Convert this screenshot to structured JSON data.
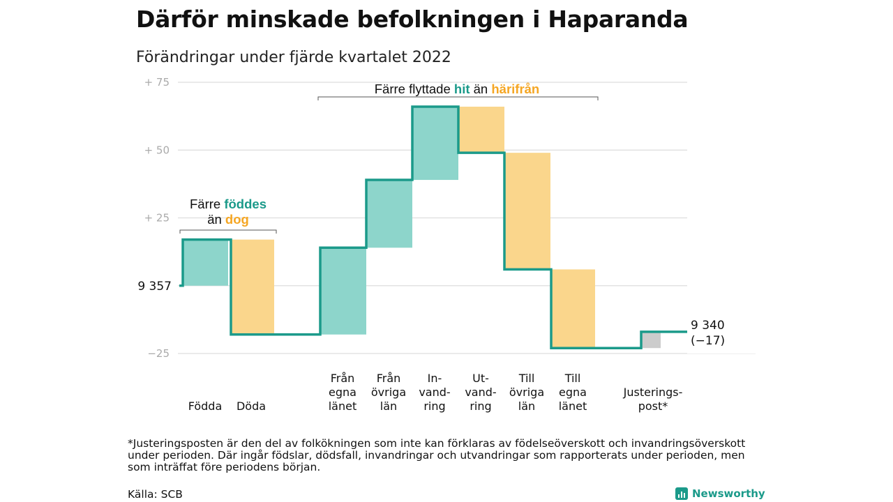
{
  "title": "Därför minskade befolkningen i Haparanda",
  "subtitle": "Förändringar under fjärde kvartalet 2022",
  "colors": {
    "increase": "#8dd5cb",
    "decrease": "#fad68c",
    "adjustment": "#cccccc",
    "line": "#1b9a8a",
    "highlight_green": "#1b9a8a",
    "highlight_orange": "#f5a623",
    "grid": "#dddddd",
    "axis_text": "#aaaaaa"
  },
  "chart_data": {
    "type": "waterfall",
    "baseline": 9357,
    "start_label": "9 357",
    "end_label_value": "9 340",
    "end_label_change": "(−17)",
    "ylim": [
      -25,
      75
    ],
    "yticks": [
      {
        "value": 75,
        "label": "+ 75"
      },
      {
        "value": 50,
        "label": "+ 50"
      },
      {
        "value": 25,
        "label": "+ 25"
      },
      {
        "value": 0,
        "label": ""
      },
      {
        "value": -25,
        "label": "−25"
      }
    ],
    "steps": [
      {
        "category": "Födda",
        "label_lines": [
          "Födda"
        ],
        "delta": 17,
        "kind": "increase"
      },
      {
        "category": "Döda",
        "label_lines": [
          "Döda"
        ],
        "delta": -35,
        "kind": "decrease"
      },
      {
        "category": "Från egna länet",
        "label_lines": [
          "Från",
          "egna",
          "länet"
        ],
        "delta": 32,
        "kind": "increase"
      },
      {
        "category": "Från övriga län",
        "label_lines": [
          "Från",
          "övriga",
          "län"
        ],
        "delta": 25,
        "kind": "increase"
      },
      {
        "category": "Invandring",
        "label_lines": [
          "In-",
          "vand-",
          "ring"
        ],
        "delta": 27,
        "kind": "increase"
      },
      {
        "category": "Utvandring",
        "label_lines": [
          "Ut-",
          "vand-",
          "ring"
        ],
        "delta": -17,
        "kind": "decrease"
      },
      {
        "category": "Till övriga län",
        "label_lines": [
          "Till",
          "övriga",
          "län"
        ],
        "delta": -43,
        "kind": "decrease"
      },
      {
        "category": "Till egna länet",
        "label_lines": [
          "Till",
          "egna",
          "länet"
        ],
        "delta": -29,
        "kind": "decrease"
      },
      {
        "category": "Justeringspost*",
        "label_lines": [
          "Justerings-",
          "post*"
        ],
        "delta": 6,
        "kind": "adjustment"
      }
    ],
    "annotations": [
      {
        "id": "birth",
        "lines": [
          [
            {
              "text": "Färre ",
              "color": "default"
            },
            {
              "text": "föddes",
              "color": "green"
            }
          ],
          [
            {
              "text": "än ",
              "color": "default"
            },
            {
              "text": "dog",
              "color": "orange"
            }
          ]
        ]
      },
      {
        "id": "migration",
        "lines": [
          [
            {
              "text": "Färre flyttade ",
              "color": "default"
            },
            {
              "text": "hit",
              "color": "green"
            },
            {
              "text": " än ",
              "color": "default"
            },
            {
              "text": "härifrån",
              "color": "orange"
            }
          ]
        ]
      }
    ]
  },
  "footnote": "*Justeringsposten är den del av folkökningen som inte kan förklaras av födelseöverskott och invandringsöverskott under perioden. Där ingår födslar, dödsfall, invandringar och utvandringar som rapporterats under perioden, men som inträffat före periodens början.",
  "source": "Källa: SCB",
  "brand": "Newsworthy"
}
